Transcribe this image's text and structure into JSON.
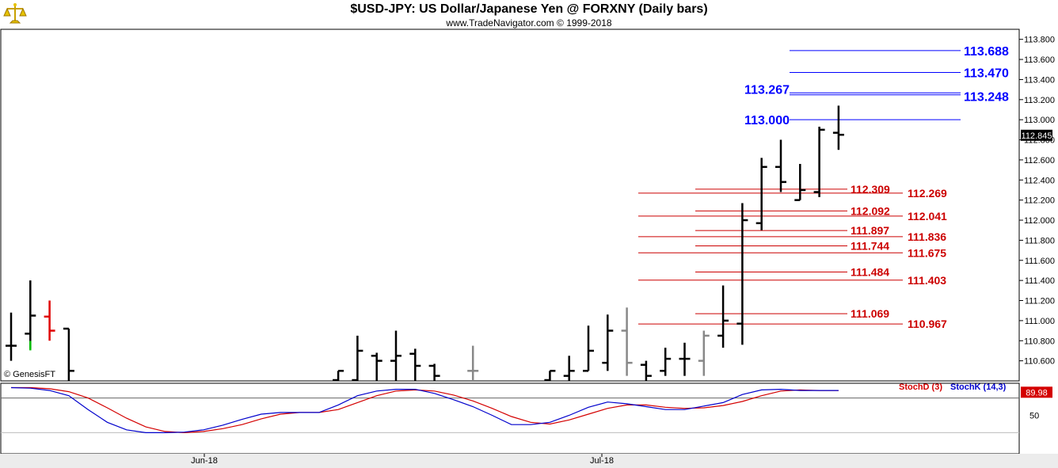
{
  "header": {
    "title": "$USD-JPY:  US Dollar/Japanese Yen @ FORXNY  (Daily bars)",
    "subtitle": "www.TradeNavigator.com © 1999-2018"
  },
  "credit": "© GenesisFT",
  "price_axis": {
    "ticks": [
      "113.800",
      "113.600",
      "113.400",
      "113.200",
      "113.000",
      "112.800",
      "112.600",
      "112.400",
      "112.200",
      "112.000",
      "111.800",
      "111.600",
      "111.400",
      "111.200",
      "111.000",
      "110.800",
      "110.600"
    ],
    "last_price": "112.845"
  },
  "date_axis": {
    "labels": [
      "Jun-18",
      "Jul-18"
    ]
  },
  "stoch": {
    "d_label": "StochD (3)",
    "k_label": "StochK (14,3)",
    "last_value": "89.98",
    "tick_50": "50"
  },
  "colors": {
    "bar_up": "#000000",
    "bar_down_red": "#e00000",
    "bar_gray": "#888888",
    "bar_green": "#00c000",
    "blue_levels": "#0000ff",
    "red_levels": "#cc0000",
    "stoch_d": "#d40000",
    "stoch_k": "#0000cc"
  },
  "chart_data": {
    "type": "ohlc",
    "ylim": [
      110.4,
      113.9
    ],
    "bars": [
      {
        "date_index": 0,
        "open": 110.75,
        "high": 111.08,
        "low": 110.6,
        "close": 110.75,
        "color": "black"
      },
      {
        "date_index": 1,
        "open": 110.87,
        "high": 111.4,
        "low": 110.72,
        "close": 111.05,
        "color": "black"
      },
      {
        "date_index": 2,
        "open": 111.04,
        "high": 111.2,
        "low": 110.8,
        "close": 110.9,
        "color": "red"
      },
      {
        "date_index": 3,
        "open": 110.92,
        "high": 110.92,
        "low": 110.4,
        "close": 110.5,
        "color": "black"
      },
      {
        "date_index": 17,
        "open": 110.4,
        "high": 110.5,
        "low": 110.4,
        "close": 110.5,
        "color": "black"
      },
      {
        "date_index": 18,
        "open": 110.4,
        "high": 110.85,
        "low": 110.4,
        "close": 110.7,
        "color": "black"
      },
      {
        "date_index": 19,
        "open": 110.65,
        "high": 110.68,
        "low": 110.4,
        "close": 110.6,
        "color": "black"
      },
      {
        "date_index": 20,
        "open": 110.6,
        "high": 110.9,
        "low": 110.4,
        "close": 110.65,
        "color": "black"
      },
      {
        "date_index": 21,
        "open": 110.67,
        "high": 110.72,
        "low": 110.4,
        "close": 110.55,
        "color": "black"
      },
      {
        "date_index": 22,
        "open": 110.55,
        "high": 110.57,
        "low": 110.4,
        "close": 110.45,
        "color": "black"
      },
      {
        "date_index": 24,
        "open": 110.5,
        "high": 110.75,
        "low": 110.4,
        "close": 110.5,
        "color": "gray"
      },
      {
        "date_index": 28,
        "open": 110.4,
        "high": 110.5,
        "low": 110.4,
        "close": 110.5,
        "color": "black"
      },
      {
        "date_index": 29,
        "open": 110.45,
        "high": 110.65,
        "low": 110.4,
        "close": 110.5,
        "color": "black"
      },
      {
        "date_index": 30,
        "open": 110.5,
        "high": 110.95,
        "low": 110.5,
        "close": 110.7,
        "color": "black"
      },
      {
        "date_index": 31,
        "open": 110.58,
        "high": 111.06,
        "low": 110.5,
        "close": 110.9,
        "color": "black"
      },
      {
        "date_index": 32,
        "open": 110.9,
        "high": 111.13,
        "low": 110.45,
        "close": 110.58,
        "color": "gray"
      },
      {
        "date_index": 33,
        "open": 110.56,
        "high": 110.6,
        "low": 110.4,
        "close": 110.45,
        "color": "black"
      },
      {
        "date_index": 34,
        "open": 110.5,
        "high": 110.73,
        "low": 110.45,
        "close": 110.62,
        "color": "black"
      },
      {
        "date_index": 35,
        "open": 110.62,
        "high": 110.78,
        "low": 110.45,
        "close": 110.62,
        "color": "black"
      },
      {
        "date_index": 36,
        "open": 110.6,
        "high": 110.9,
        "low": 110.45,
        "close": 110.85,
        "color": "gray"
      },
      {
        "date_index": 37,
        "open": 110.85,
        "high": 111.35,
        "low": 110.73,
        "close": 111.0,
        "color": "black"
      },
      {
        "date_index": 38,
        "open": 110.97,
        "high": 112.17,
        "low": 110.76,
        "close": 112.0,
        "color": "black"
      },
      {
        "date_index": 39,
        "open": 111.97,
        "high": 112.62,
        "low": 111.9,
        "close": 112.53,
        "color": "black"
      },
      {
        "date_index": 40,
        "open": 112.53,
        "high": 112.8,
        "low": 112.28,
        "close": 112.38,
        "color": "black"
      },
      {
        "date_index": 41,
        "open": 112.2,
        "high": 112.56,
        "low": 112.2,
        "close": 112.3,
        "color": "black"
      },
      {
        "date_index": 42,
        "open": 112.28,
        "high": 112.93,
        "low": 112.23,
        "close": 112.9,
        "color": "black"
      },
      {
        "date_index": 43,
        "open": 112.87,
        "high": 113.14,
        "low": 112.7,
        "close": 112.85,
        "color": "black"
      }
    ],
    "blue_levels": [
      {
        "value": 113.688,
        "label": "113.688"
      },
      {
        "value": 113.47,
        "label": "113.470"
      },
      {
        "value": 113.267,
        "label": "113.267"
      },
      {
        "value": 113.248,
        "label": "113.248"
      },
      {
        "value": 113.0,
        "label": "113.000"
      }
    ],
    "red_levels": [
      {
        "value": 112.309,
        "label": "112.309"
      },
      {
        "value": 112.269,
        "label": "112.269"
      },
      {
        "value": 112.092,
        "label": "112.092"
      },
      {
        "value": 112.041,
        "label": "112.041"
      },
      {
        "value": 111.897,
        "label": "111.897"
      },
      {
        "value": 111.836,
        "label": "111.836"
      },
      {
        "value": 111.744,
        "label": "111.744"
      },
      {
        "value": 111.675,
        "label": "111.675"
      },
      {
        "value": 111.484,
        "label": "111.484"
      },
      {
        "value": 111.403,
        "label": "111.403"
      },
      {
        "value": 111.069,
        "label": "111.069"
      },
      {
        "value": 110.967,
        "label": "110.967"
      }
    ],
    "stoch_ylim": [
      0,
      100
    ],
    "stoch_k": [
      98,
      97,
      93,
      84,
      60,
      38,
      25,
      20,
      20,
      21,
      25,
      33,
      43,
      52,
      55,
      55,
      55,
      68,
      84,
      92,
      95,
      95,
      88,
      77,
      65,
      50,
      34,
      34,
      38,
      50,
      64,
      73,
      70,
      65,
      60,
      60,
      66,
      72,
      86,
      94,
      95,
      93,
      93,
      93
    ],
    "stoch_d": [
      98,
      98,
      96,
      91,
      80,
      63,
      45,
      30,
      22,
      20,
      22,
      27,
      34,
      44,
      52,
      55,
      55,
      60,
      72,
      84,
      92,
      94,
      92,
      85,
      75,
      62,
      48,
      38,
      35,
      42,
      52,
      62,
      68,
      68,
      64,
      62,
      63,
      67,
      74,
      84,
      92,
      94,
      93,
      93
    ]
  }
}
